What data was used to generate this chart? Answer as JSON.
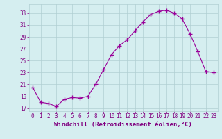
{
  "x": [
    0,
    1,
    2,
    3,
    4,
    5,
    6,
    7,
    8,
    9,
    10,
    11,
    12,
    13,
    14,
    15,
    16,
    17,
    18,
    19,
    20,
    21,
    22,
    23
  ],
  "y": [
    20.5,
    18.0,
    17.8,
    17.3,
    18.5,
    18.8,
    18.7,
    19.0,
    21.0,
    23.5,
    26.0,
    27.5,
    28.5,
    30.0,
    31.5,
    32.8,
    33.3,
    33.5,
    33.0,
    32.0,
    29.5,
    26.5,
    23.2,
    23.0
  ],
  "line_color": "#990099",
  "marker": "+",
  "markersize": 4,
  "linewidth": 0.8,
  "xlabel": "Windchill (Refroidissement éolien,°C)",
  "xlabel_fontsize": 6.5,
  "bg_color": "#d5eef0",
  "grid_color": "#b0cfd2",
  "xlim": [
    -0.5,
    23.5
  ],
  "ylim": [
    16.5,
    34.5
  ],
  "yticks": [
    17,
    19,
    21,
    23,
    25,
    27,
    29,
    31,
    33
  ],
  "xticks": [
    0,
    1,
    2,
    3,
    4,
    5,
    6,
    7,
    8,
    9,
    10,
    11,
    12,
    13,
    14,
    15,
    16,
    17,
    18,
    19,
    20,
    21,
    22,
    23
  ],
  "tick_fontsize": 5.5,
  "tick_color": "#800080",
  "xlabel_color": "#800080"
}
